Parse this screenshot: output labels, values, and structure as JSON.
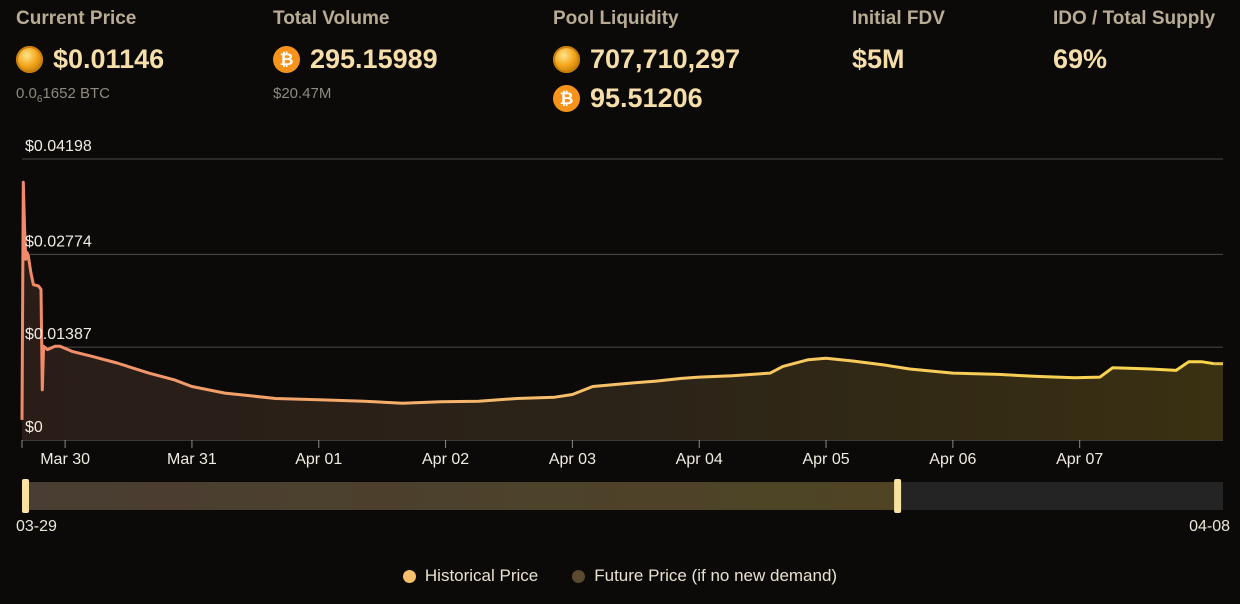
{
  "stats": {
    "current_price": {
      "label": "Current Price",
      "value": "$0.01146",
      "btc_prefix": "0.0",
      "btc_sub": "6",
      "btc_rest": "1652 BTC"
    },
    "total_volume": {
      "label": "Total Volume",
      "value": "295.15989",
      "usd": "$20.47M"
    },
    "pool_liquidity": {
      "label": "Pool Liquidity",
      "token_amount": "707,710,297",
      "btc_amount": "95.51206"
    },
    "initial_fdv": {
      "label": "Initial FDV",
      "value": "$5M"
    },
    "ido_supply": {
      "label": "IDO / Total Supply",
      "value": "69%"
    }
  },
  "colors": {
    "historical": "#f6bf6b",
    "future": "#5a4a30",
    "grid": "#4a4a4a",
    "early": "#f08a6a",
    "late": "#f9d64a"
  },
  "icons": {
    "token": "gold-token-icon",
    "btc": "bitcoin-icon",
    "btc_glyph": "₿"
  },
  "chart_data": {
    "type": "area",
    "y_ticks": [
      {
        "value": 0,
        "label": "$0"
      },
      {
        "value": 0.01387,
        "label": "$0.01387"
      },
      {
        "value": 0.02774,
        "label": "$0.02774"
      },
      {
        "value": 0.04198,
        "label": "$0.04198"
      }
    ],
    "ylim": [
      0,
      0.04198
    ],
    "xlim": [
      0,
      9.47
    ],
    "x_ticks": [
      {
        "x": 0.34,
        "label": "Mar 30"
      },
      {
        "x": 1.34,
        "label": "Mar 31"
      },
      {
        "x": 2.34,
        "label": "Apr 01"
      },
      {
        "x": 3.34,
        "label": "Apr 02"
      },
      {
        "x": 4.34,
        "label": "Apr 03"
      },
      {
        "x": 5.34,
        "label": "Apr 04"
      },
      {
        "x": 6.34,
        "label": "Apr 05"
      },
      {
        "x": 7.34,
        "label": "Apr 06"
      },
      {
        "x": 8.34,
        "label": "Apr 07"
      }
    ],
    "series": [
      {
        "name": "Historical Price",
        "points": [
          [
            0.0,
            0.003
          ],
          [
            0.01,
            0.0385
          ],
          [
            0.02,
            0.032
          ],
          [
            0.03,
            0.027
          ],
          [
            0.04,
            0.028
          ],
          [
            0.05,
            0.0275
          ],
          [
            0.07,
            0.025
          ],
          [
            0.09,
            0.0232
          ],
          [
            0.13,
            0.023
          ],
          [
            0.15,
            0.0225
          ],
          [
            0.16,
            0.0075
          ],
          [
            0.17,
            0.014
          ],
          [
            0.2,
            0.0135
          ],
          [
            0.26,
            0.014
          ],
          [
            0.3,
            0.014
          ],
          [
            0.4,
            0.0132
          ],
          [
            0.55,
            0.0125
          ],
          [
            0.75,
            0.0115
          ],
          [
            1.0,
            0.01
          ],
          [
            1.2,
            0.009
          ],
          [
            1.34,
            0.008
          ],
          [
            1.6,
            0.007
          ],
          [
            1.8,
            0.0066
          ],
          [
            2.0,
            0.0062
          ],
          [
            2.34,
            0.006
          ],
          [
            2.7,
            0.0058
          ],
          [
            3.0,
            0.0055
          ],
          [
            3.3,
            0.0057
          ],
          [
            3.6,
            0.0058
          ],
          [
            3.9,
            0.0062
          ],
          [
            4.2,
            0.0064
          ],
          [
            4.34,
            0.0068
          ],
          [
            4.5,
            0.008
          ],
          [
            4.8,
            0.0085
          ],
          [
            5.0,
            0.0088
          ],
          [
            5.2,
            0.0092
          ],
          [
            5.34,
            0.0094
          ],
          [
            5.6,
            0.0096
          ],
          [
            5.9,
            0.01
          ],
          [
            6.0,
            0.011
          ],
          [
            6.2,
            0.012
          ],
          [
            6.34,
            0.0122
          ],
          [
            6.55,
            0.0118
          ],
          [
            6.8,
            0.0112
          ],
          [
            7.0,
            0.0106
          ],
          [
            7.34,
            0.01
          ],
          [
            7.7,
            0.0098
          ],
          [
            8.0,
            0.0095
          ],
          [
            8.3,
            0.0093
          ],
          [
            8.5,
            0.0094
          ],
          [
            8.6,
            0.0108
          ],
          [
            8.9,
            0.0106
          ],
          [
            9.1,
            0.0104
          ],
          [
            9.2,
            0.0117
          ],
          [
            9.3,
            0.0117
          ],
          [
            9.4,
            0.0114
          ]
        ]
      },
      {
        "name": "Future Price (if no new demand)",
        "points": [
          [
            9.4,
            0.0114
          ],
          [
            9.47,
            0.0114
          ]
        ]
      }
    ],
    "range": {
      "start_label": "03-29",
      "end_label": "04-08",
      "selected_end": 6.9,
      "total": 9.47
    },
    "legend": {
      "historical": "Historical Price",
      "future": "Future Price (if no new demand)"
    }
  }
}
